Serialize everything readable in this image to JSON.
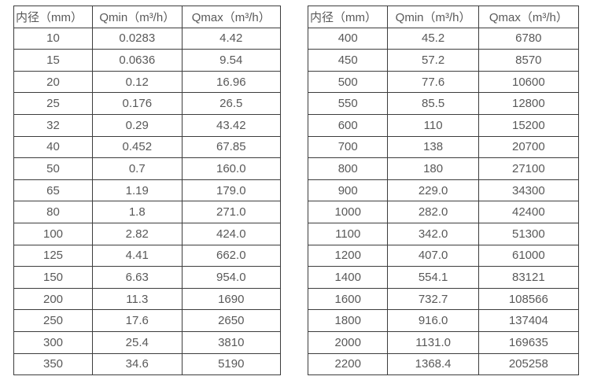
{
  "page": {
    "background": "#ffffff",
    "text_color": "#595959",
    "border_color": "#3d3d3d"
  },
  "tables": [
    {
      "name": "flow-spec-table-small-diameters",
      "headers": [
        "内径（mm）",
        "Qmin（m³/h）",
        "Qmax（m³/h）"
      ],
      "rows": [
        [
          "10",
          "0.0283",
          "4.42"
        ],
        [
          "15",
          "0.0636",
          "9.54"
        ],
        [
          "20",
          "0.12",
          "16.96"
        ],
        [
          "25",
          "0.176",
          "26.5"
        ],
        [
          "32",
          "0.29",
          "43.42"
        ],
        [
          "40",
          "0.452",
          "67.85"
        ],
        [
          "50",
          "0.7",
          "160.0"
        ],
        [
          "65",
          "1.19",
          "179.0"
        ],
        [
          "80",
          "1.8",
          "271.0"
        ],
        [
          "100",
          "2.82",
          "424.0"
        ],
        [
          "125",
          "4.41",
          "662.0"
        ],
        [
          "150",
          "6.63",
          "954.0"
        ],
        [
          "200",
          "11.3",
          "1690"
        ],
        [
          "250",
          "17.6",
          "2650"
        ],
        [
          "300",
          "25.4",
          "3810"
        ],
        [
          "350",
          "34.6",
          "5190"
        ]
      ]
    },
    {
      "name": "flow-spec-table-large-diameters",
      "headers": [
        "内径（mm）",
        "Qmin（m³/h）",
        "Qmax（m³/h）"
      ],
      "rows": [
        [
          "400",
          "45.2",
          "6780"
        ],
        [
          "450",
          "57.2",
          "8570"
        ],
        [
          "500",
          "77.6",
          "10600"
        ],
        [
          "550",
          "85.5",
          "12800"
        ],
        [
          "600",
          "110",
          "15200"
        ],
        [
          "700",
          "138",
          "20700"
        ],
        [
          "800",
          "180",
          "27100"
        ],
        [
          "900",
          "229.0",
          "34300"
        ],
        [
          "1000",
          "282.0",
          "42400"
        ],
        [
          "1100",
          "342.0",
          "51300"
        ],
        [
          "1200",
          "407.0",
          "61000"
        ],
        [
          "1400",
          "554.1",
          "83121"
        ],
        [
          "1600",
          "732.7",
          "108566"
        ],
        [
          "1800",
          "916.0",
          "137404"
        ],
        [
          "2000",
          "1131.0",
          "169635"
        ],
        [
          "2200",
          "1368.4",
          "205258"
        ]
      ]
    }
  ]
}
